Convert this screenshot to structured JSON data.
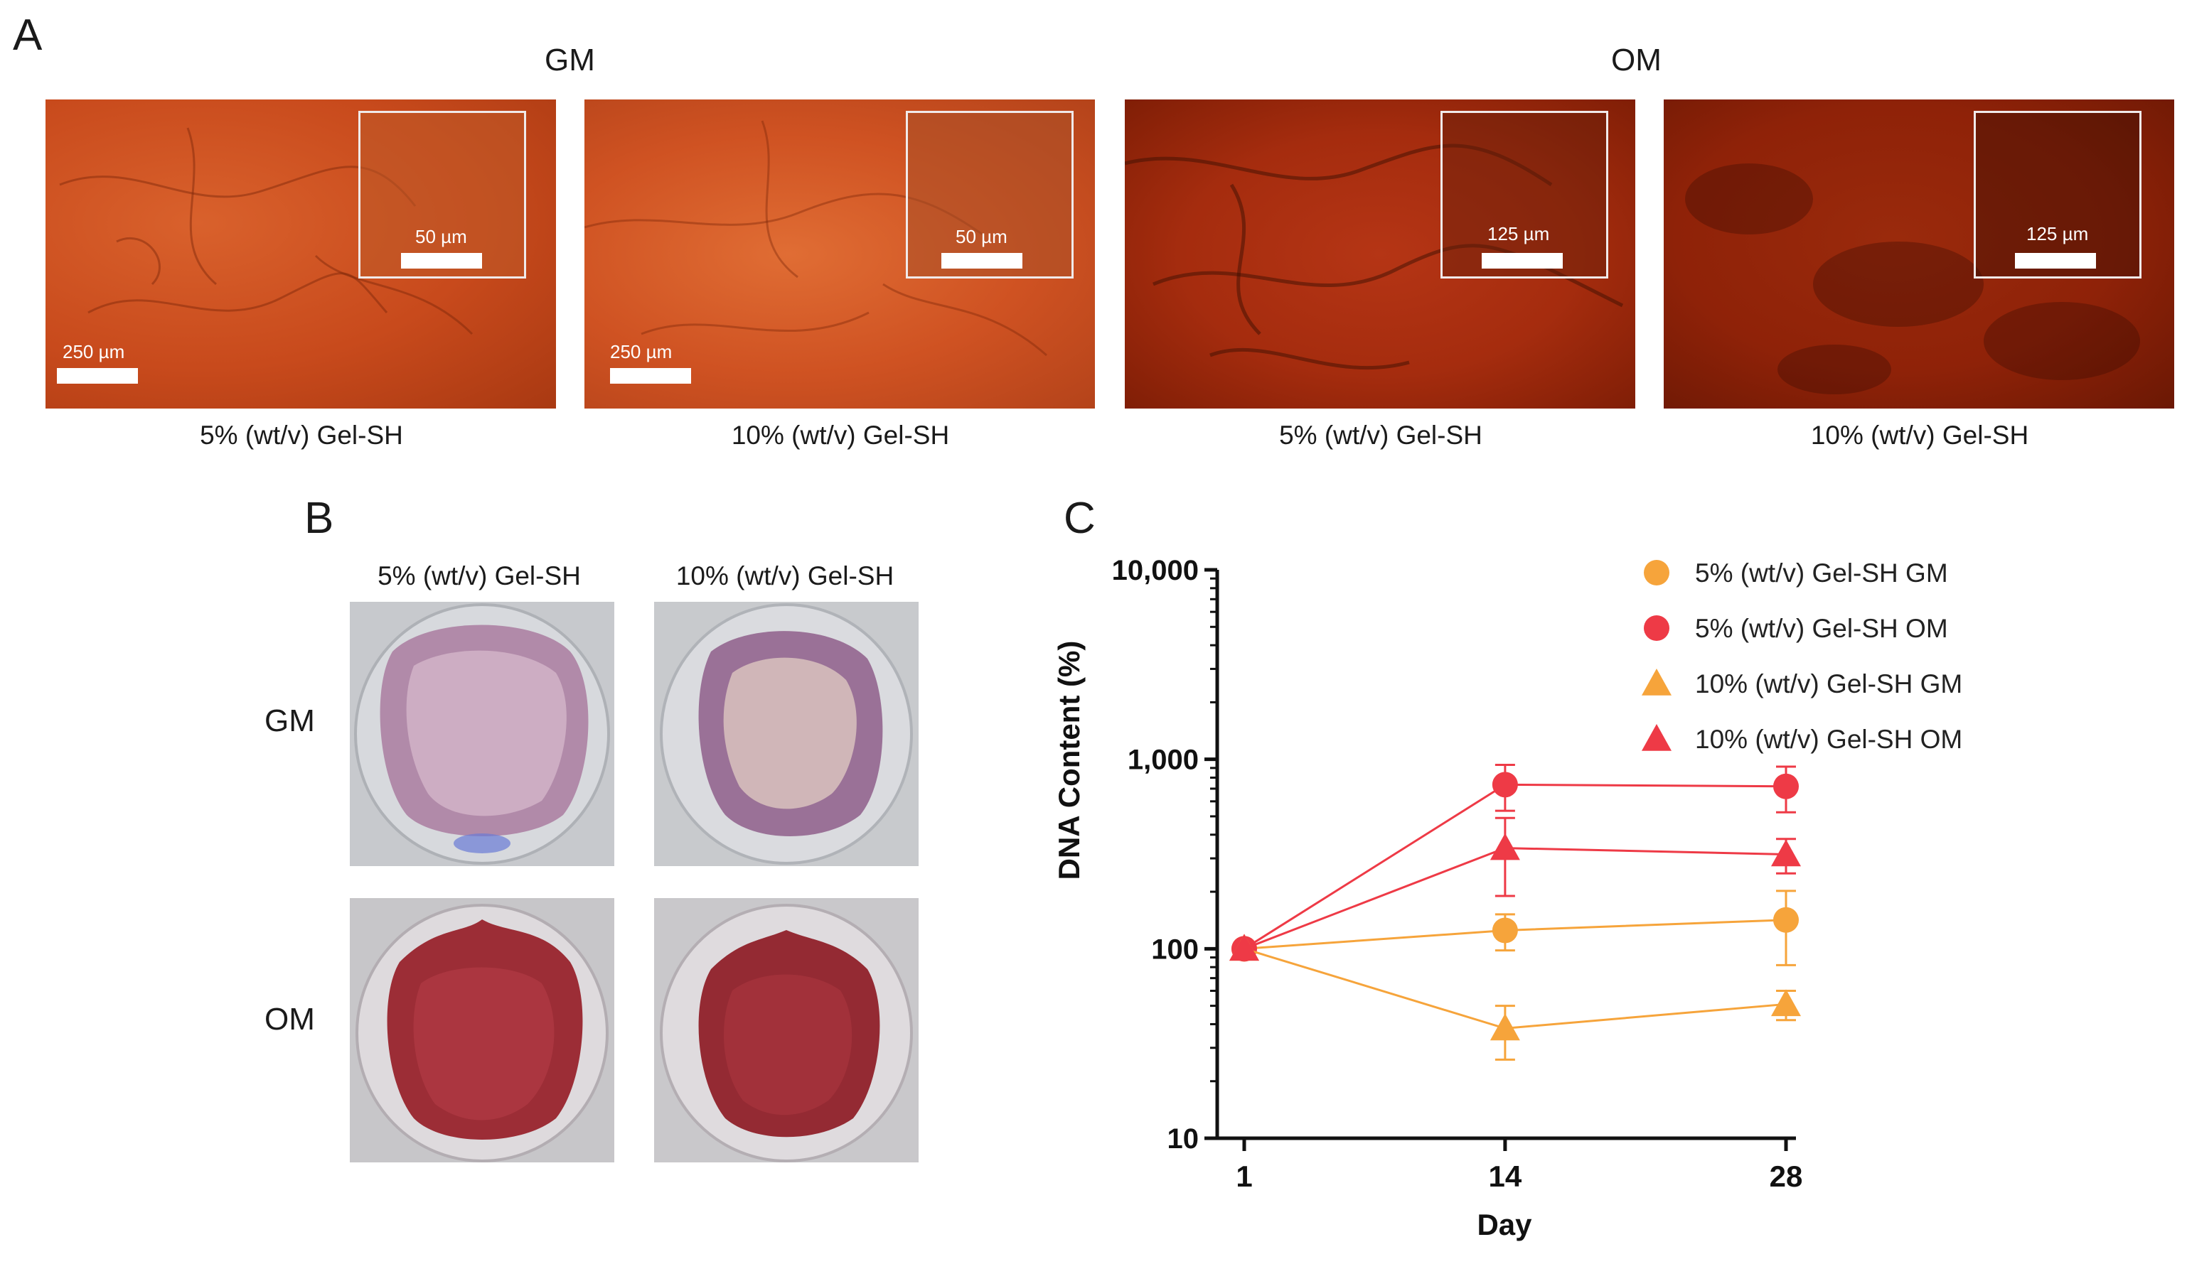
{
  "panel_a": {
    "letter": "A",
    "groups": [
      "GM",
      "OM"
    ],
    "images": [
      {
        "group": "GM",
        "caption": "5% (wt/v) Gel-SH",
        "inset_scale": "50 µm",
        "main_scale": "250 µm",
        "tone": "#c84a1c"
      },
      {
        "group": "GM",
        "caption": "10% (wt/v) Gel-SH",
        "inset_scale": "50 µm",
        "main_scale": "250 µm",
        "tone": "#cf5222"
      },
      {
        "group": "OM",
        "caption": "5% (wt/v) Gel-SH",
        "inset_scale": "125 µm",
        "main_scale": "",
        "tone": "#a52c0e"
      },
      {
        "group": "OM",
        "caption": "10% (wt/v) Gel-SH",
        "inset_scale": "125 µm",
        "main_scale": "",
        "tone": "#8f2208"
      }
    ]
  },
  "panel_b": {
    "letter": "B",
    "columns": [
      "5% (wt/v) Gel-SH",
      "10% (wt/v) Gel-SH"
    ],
    "rows": [
      "GM",
      "OM"
    ]
  },
  "panel_c": {
    "letter": "C"
  },
  "chart_data": {
    "type": "line",
    "title": "",
    "xlabel": "Day",
    "ylabel": "DNA Content (%)",
    "x": [
      1,
      14,
      28
    ],
    "xticks": [
      "1",
      "14",
      "28"
    ],
    "yscale": "log",
    "ylim": [
      10,
      10000
    ],
    "yticks": [
      "10",
      "100",
      "1,000",
      "10,000"
    ],
    "series": [
      {
        "name": "5% (wt/v) Gel-SH GM",
        "marker": "circle",
        "color": "#f6a43b",
        "values": [
          100,
          125,
          142
        ],
        "err": [
          0,
          27,
          60
        ]
      },
      {
        "name": "5% (wt/v) Gel-SH OM",
        "marker": "circle",
        "color": "#ee3a46",
        "values": [
          100,
          735,
          720
        ],
        "err": [
          0,
          200,
          195
        ]
      },
      {
        "name": "10% (wt/v) Gel-SH GM",
        "marker": "triangle",
        "color": "#f6a43b",
        "values": [
          100,
          38,
          51
        ],
        "err": [
          0,
          12,
          9
        ]
      },
      {
        "name": "10% (wt/v) Gel-SH OM",
        "marker": "triangle",
        "color": "#ee3a46",
        "values": [
          100,
          340,
          315
        ],
        "err": [
          0,
          150,
          65
        ]
      }
    ],
    "legend_position": "top-right"
  }
}
